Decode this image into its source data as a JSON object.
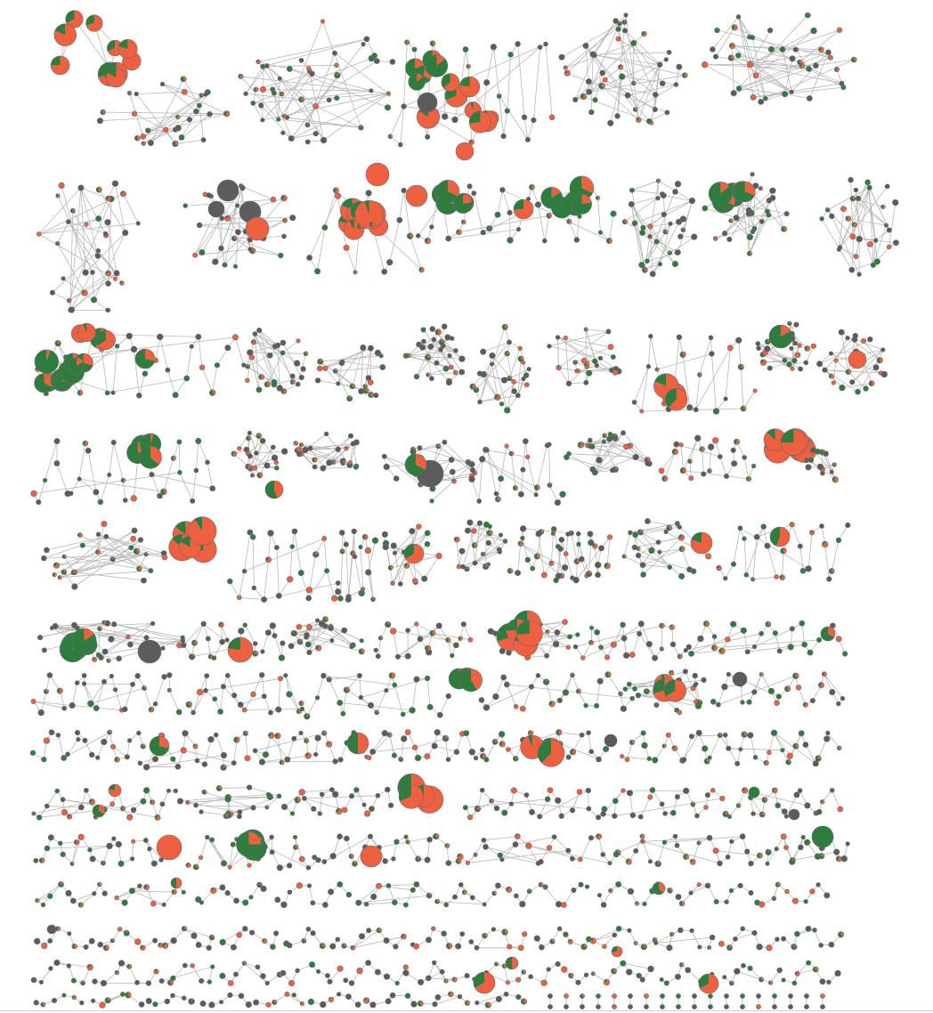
{
  "view": {
    "title": "",
    "background": "#ffffff"
  },
  "palette": {
    "orange": "#ee6040",
    "green": "#2e7d3e",
    "grey": "#5c5c5c",
    "edge": "#b8b8b8",
    "light": "#d9d9d9"
  },
  "legend": [],
  "layout_description": "",
  "rows": 12
}
